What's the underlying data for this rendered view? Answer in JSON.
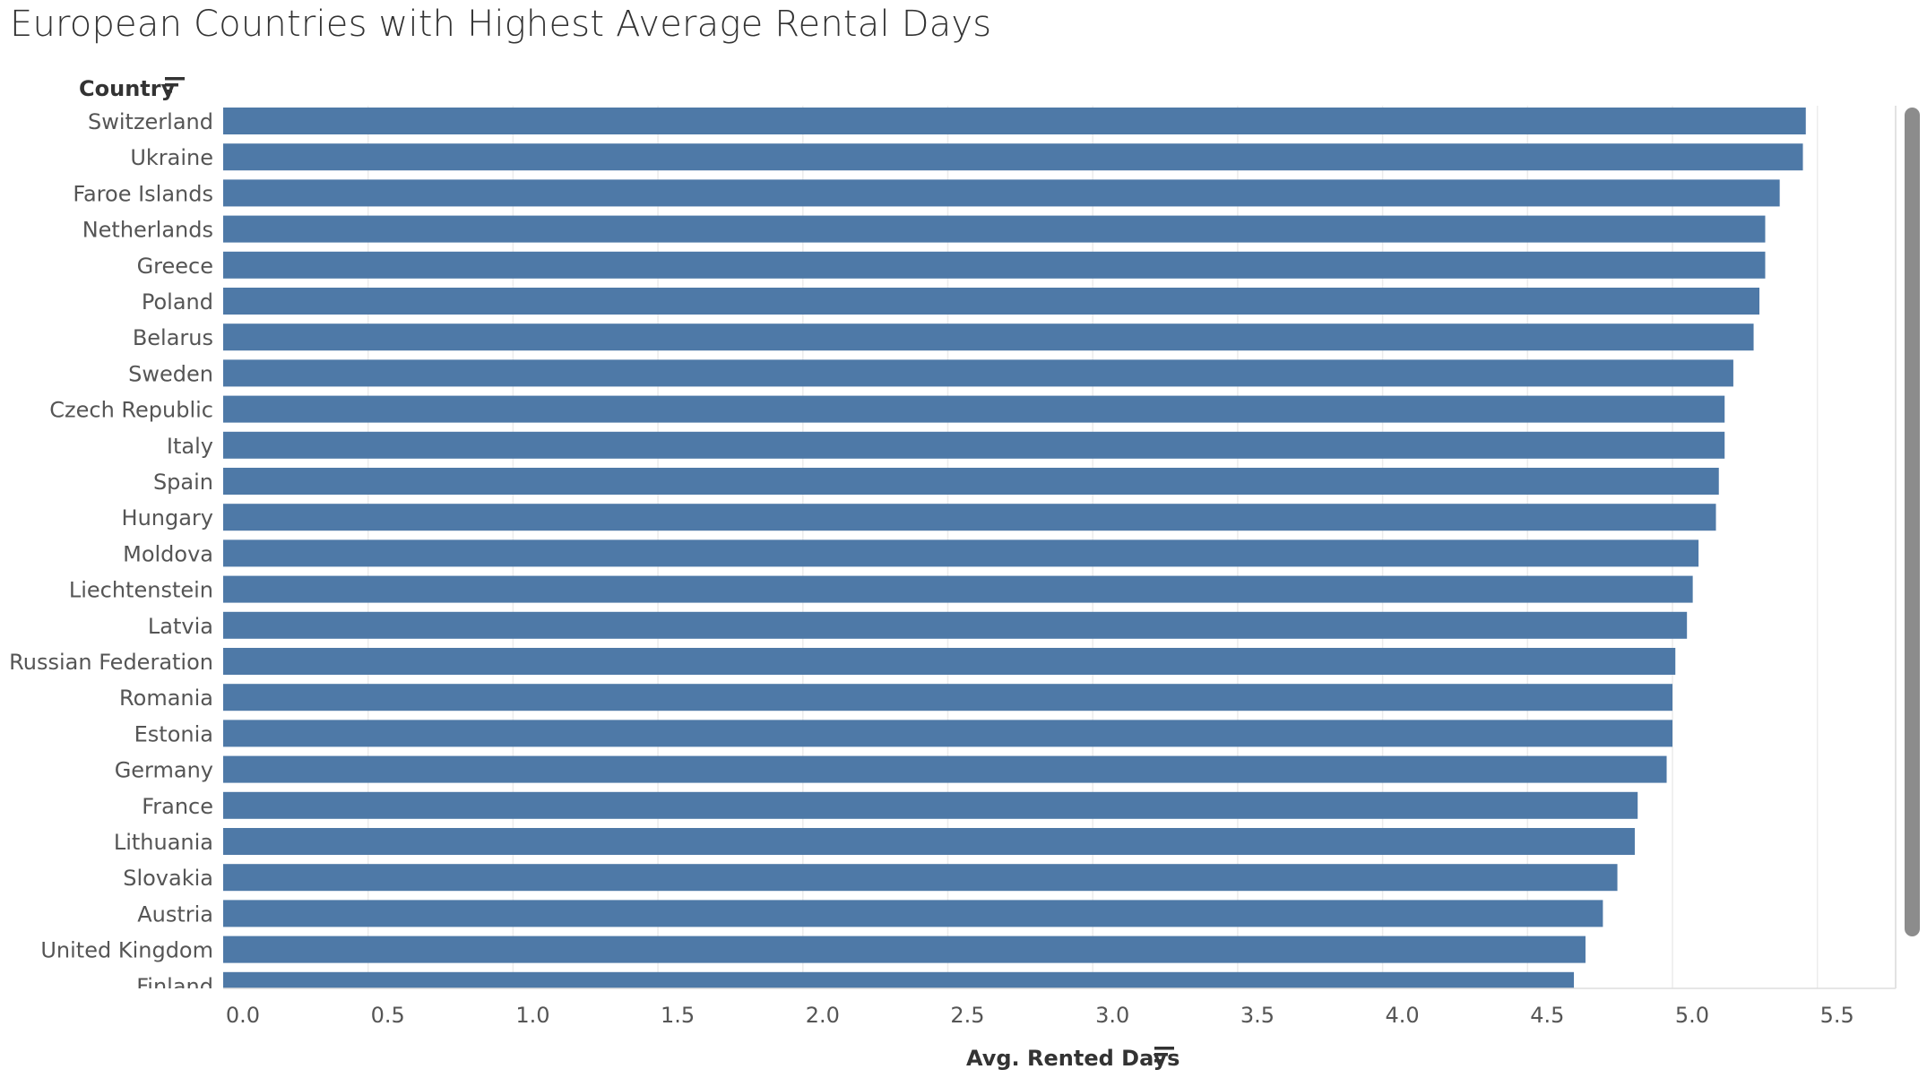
{
  "title": "European Countries with Highest Average Rental Days",
  "icons": {
    "sort": "sort-descending-icon"
  },
  "chart_data": {
    "type": "bar",
    "orientation": "horizontal",
    "title": "European Countries with Highest Average Rental Days",
    "ylabel": "Country",
    "xlabel": "Avg. Rented Days",
    "xlim": [
      0,
      5.77
    ],
    "xticks": [
      "0.0",
      "0.5",
      "1.0",
      "1.5",
      "2.0",
      "2.5",
      "3.0",
      "3.5",
      "4.0",
      "4.5",
      "5.0",
      "5.5"
    ],
    "grid": true,
    "color": "#4e79a7",
    "categories": [
      "Switzerland",
      "Ukraine",
      "Faroe Islands",
      "Netherlands",
      "Greece",
      "Poland",
      "Belarus",
      "Sweden",
      "Czech Republic",
      "Italy",
      "Spain",
      "Hungary",
      "Moldova",
      "Liechtenstein",
      "Latvia",
      "Russian Federation",
      "Romania",
      "Estonia",
      "Germany",
      "France",
      "Lithuania",
      "Slovakia",
      "Austria",
      "United Kingdom",
      "Finland"
    ],
    "values": [
      5.46,
      5.45,
      5.37,
      5.32,
      5.32,
      5.3,
      5.28,
      5.21,
      5.18,
      5.18,
      5.16,
      5.15,
      5.09,
      5.07,
      5.05,
      5.01,
      5.0,
      5.0,
      4.98,
      4.88,
      4.87,
      4.81,
      4.76,
      4.7,
      4.66
    ]
  }
}
